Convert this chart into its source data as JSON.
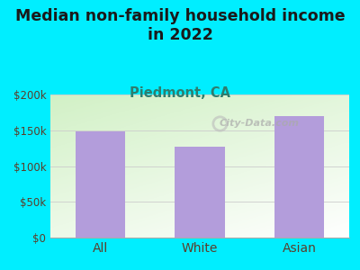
{
  "title": "Median non-family household income\nin 2022",
  "subtitle": "Piedmont, CA",
  "categories": [
    "All",
    "White",
    "Asian"
  ],
  "values": [
    148000,
    127000,
    170000
  ],
  "bar_color": "#b39ddb",
  "background_outer": "#00eeff",
  "background_plot": "#e8f5e0",
  "title_color": "#1a1a1a",
  "subtitle_color": "#2e7d6e",
  "tick_label_color": "#5a3e2b",
  "xlabel_color": "#5a3e2b",
  "ylim": [
    0,
    200000
  ],
  "yticks": [
    0,
    50000,
    100000,
    150000,
    200000
  ],
  "watermark": "City-Data.com",
  "title_fontsize": 12.5,
  "subtitle_fontsize": 10.5,
  "tick_fontsize": 8.5,
  "xlabel_fontsize": 10
}
